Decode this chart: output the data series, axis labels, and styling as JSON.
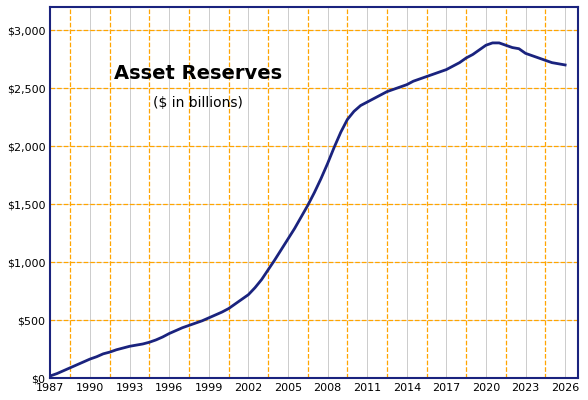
{
  "title": "Asset Reserves",
  "subtitle": "($ in billions)",
  "xlim": [
    1987,
    2027
  ],
  "ylim": [
    0,
    3200
  ],
  "xticks": [
    1987,
    1990,
    1993,
    1996,
    1999,
    2002,
    2005,
    2008,
    2011,
    2014,
    2017,
    2020,
    2023,
    2026
  ],
  "yticks": [
    0,
    500,
    1000,
    1500,
    2000,
    2500,
    3000
  ],
  "ytick_labels": [
    "$0",
    "$500",
    "$1,000",
    "$1,500",
    "$2,000",
    "$2,500",
    "$3,000"
  ],
  "line_color": "#1a237e",
  "line_width": 2.0,
  "grid_color_orange": "#FFA500",
  "grid_color_gray": "#aaaaaa",
  "background_color": "#ffffff",
  "border_color": "#1a237e",
  "years": [
    1987,
    1987.5,
    1988,
    1988.5,
    1989,
    1989.5,
    1990,
    1990.5,
    1991,
    1991.5,
    1992,
    1992.5,
    1993,
    1993.5,
    1994,
    1994.5,
    1995,
    1995.5,
    1996,
    1996.5,
    1997,
    1997.5,
    1998,
    1998.5,
    1999,
    1999.5,
    2000,
    2000.5,
    2001,
    2001.5,
    2002,
    2002.5,
    2003,
    2003.5,
    2004,
    2004.5,
    2005,
    2005.5,
    2006,
    2006.5,
    2007,
    2007.5,
    2008,
    2008.5,
    2009,
    2009.5,
    2010,
    2010.5,
    2011,
    2011.5,
    2012,
    2012.5,
    2013,
    2013.5,
    2014,
    2014.5,
    2015,
    2015.5,
    2016,
    2016.5,
    2017,
    2017.5,
    2018,
    2018.5,
    2019,
    2019.5,
    2020,
    2020.5,
    2021,
    2021.5,
    2022,
    2022.5,
    2023,
    2023.5,
    2024,
    2024.5,
    2025,
    2025.5,
    2026
  ],
  "values": [
    20,
    40,
    65,
    90,
    115,
    140,
    165,
    185,
    210,
    225,
    245,
    260,
    275,
    285,
    295,
    310,
    330,
    355,
    385,
    410,
    435,
    455,
    475,
    495,
    520,
    545,
    570,
    600,
    640,
    680,
    720,
    780,
    850,
    935,
    1020,
    1110,
    1200,
    1290,
    1390,
    1490,
    1600,
    1720,
    1850,
    1990,
    2120,
    2230,
    2300,
    2350,
    2380,
    2410,
    2440,
    2470,
    2490,
    2510,
    2530,
    2560,
    2580,
    2600,
    2620,
    2640,
    2660,
    2690,
    2720,
    2760,
    2790,
    2830,
    2870,
    2890,
    2890,
    2870,
    2850,
    2840,
    2800,
    2780,
    2760,
    2740,
    2720,
    2710,
    2700
  ]
}
